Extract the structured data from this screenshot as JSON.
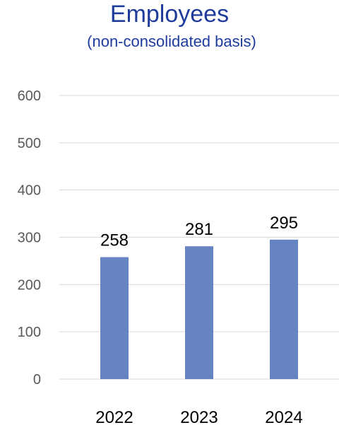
{
  "chart_data": {
    "type": "bar",
    "title": "Employees",
    "subtitle": "(non-consolidated basis)",
    "categories": [
      "2022",
      "2023",
      "2024"
    ],
    "values": [
      258,
      281,
      295
    ],
    "data_labels": [
      "258",
      "281",
      "295"
    ],
    "ylim": [
      0,
      600
    ],
    "y_ticks": [
      0,
      100,
      200,
      300,
      400,
      500,
      600
    ],
    "y_tick_labels": [
      "0",
      "100",
      "200",
      "300",
      "400",
      "500",
      "600"
    ],
    "grid": true,
    "legend": "none",
    "colors": {
      "bar": "#6683c4",
      "title": "#1f3c9c",
      "grid": "#d9d9d9",
      "tick_label": "#595959",
      "data_label": "#000000"
    }
  }
}
